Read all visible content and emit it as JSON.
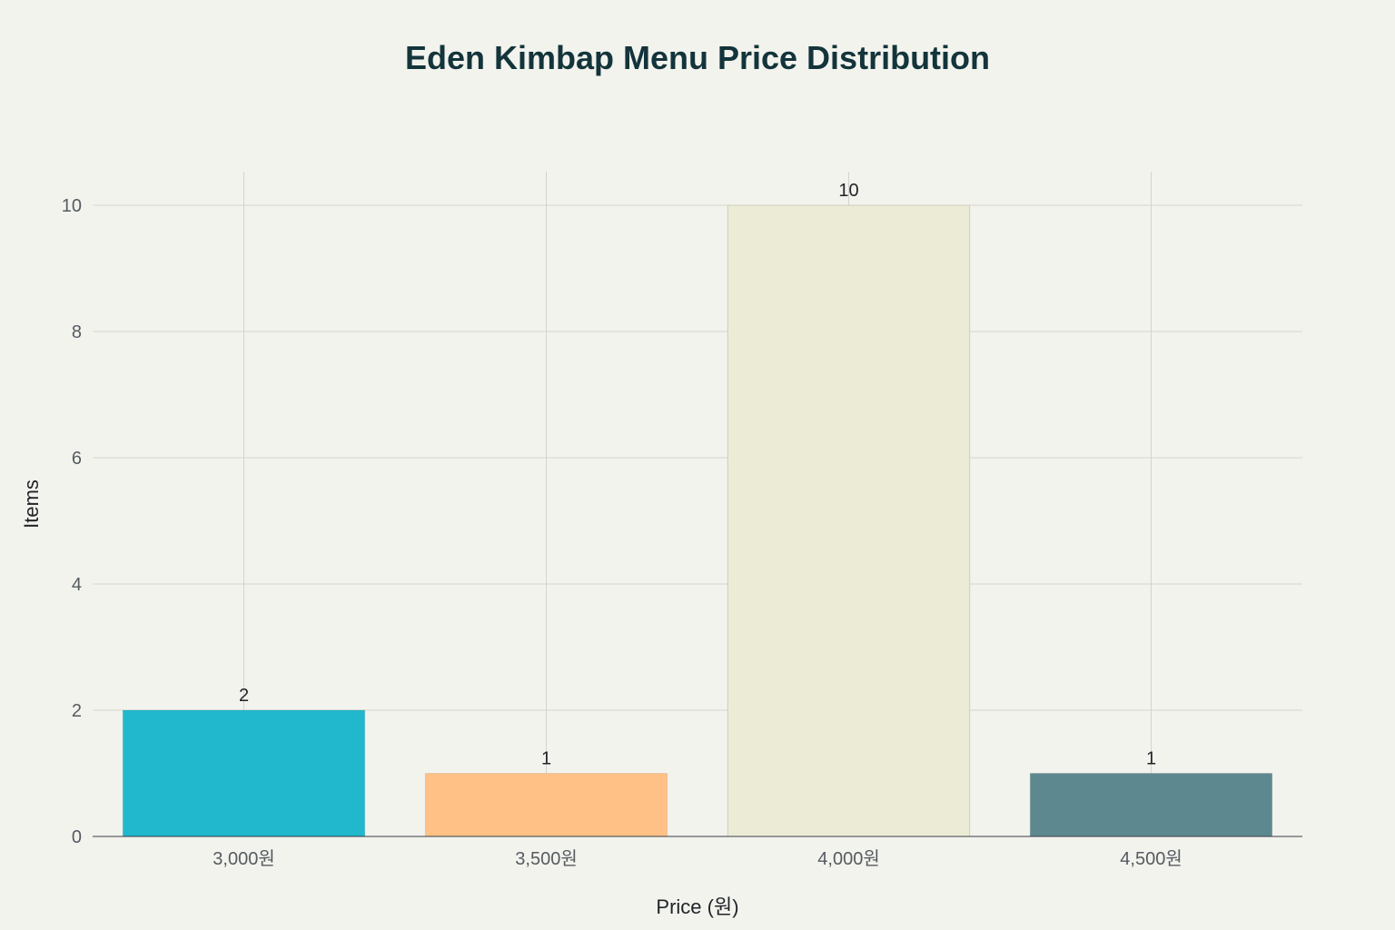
{
  "chart_data": {
    "type": "bar",
    "title": "Eden Kimbap Menu Price Distribution",
    "xlabel": "Price (원)",
    "ylabel": "Items",
    "categories": [
      "3,000원",
      "3,500원",
      "4,000원",
      "4,500원"
    ],
    "values": [
      2,
      1,
      10,
      1
    ],
    "data_labels": [
      "2",
      "1",
      "10",
      "1"
    ],
    "bar_colors": [
      "#21b8cd",
      "#ffc185",
      "#ecebd5",
      "#5e8890"
    ],
    "ylim": [
      0,
      10.5
    ],
    "yticks": [
      0,
      2,
      4,
      6,
      8,
      10
    ],
    "ytick_labels": [
      "0",
      "2",
      "4",
      "6",
      "8",
      "10"
    ],
    "grid": true,
    "legend": "none"
  }
}
